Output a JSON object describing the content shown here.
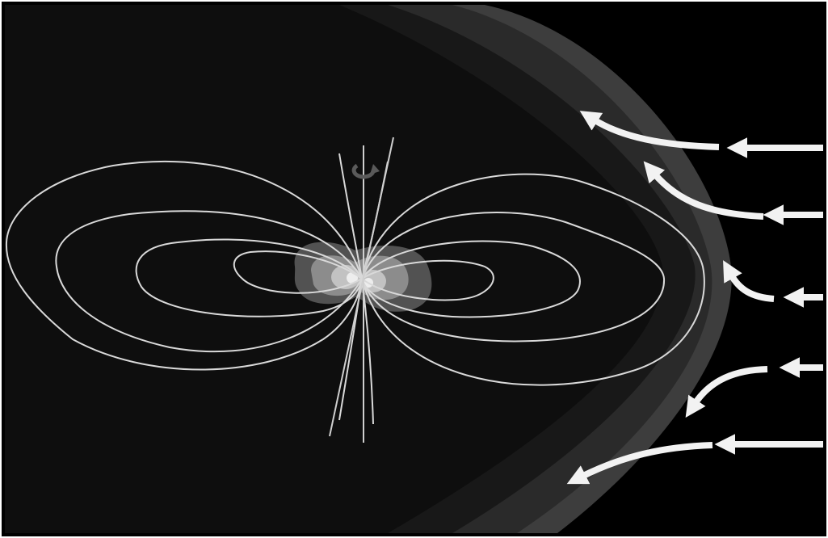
{
  "diagram": {
    "subject": "magnetosphere",
    "labels": [],
    "colors": {
      "background": "#000000",
      "frame": "#ffffff",
      "magnetosheath_outer": "#454545",
      "magnetosheath_inner": "#2c2c2c",
      "magnetotail": "#0b0b0b",
      "field_lines": "#d9d9d9",
      "rotation_axis": "#cfcfcf",
      "solar_wind_arrows": "#f2f2f2",
      "rotation_arrow": "#5a5a5a",
      "radiation_belt_outer": "#5f5f5f",
      "radiation_belt_inner": "#9a9a9a",
      "radiation_belt_core": "#d8d8d8"
    },
    "icons": {
      "rotation": "circular-rotation-arrow-icon",
      "solar_wind": "arrow-left-icon"
    },
    "solar_wind_arrow_count": 5,
    "field_line_loops_per_side": 4,
    "axes": [
      "rotation-axis",
      "magnetic-axis"
    ]
  }
}
